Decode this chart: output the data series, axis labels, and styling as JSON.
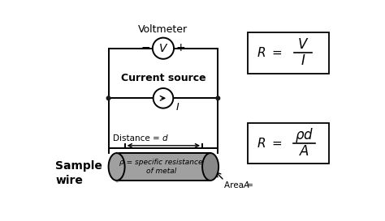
{
  "bg_color": "#ffffff",
  "voltmeter_label": "Voltmeter",
  "voltmeter_symbol": "V",
  "current_source_label": "Current source",
  "current_symbol": "I",
  "distance_label": "Distance = ",
  "distance_var": "d",
  "area_label": "Area = ",
  "area_var": "A",
  "rho_label": "ρ = specific resistance\nof metal",
  "sample_wire_label": "Sample\nwire",
  "circuit_line_color": "#000000",
  "cylinder_color": "#a0a0a0",
  "cylinder_dark": "#888888",
  "dot_color": "#1a1a1a"
}
